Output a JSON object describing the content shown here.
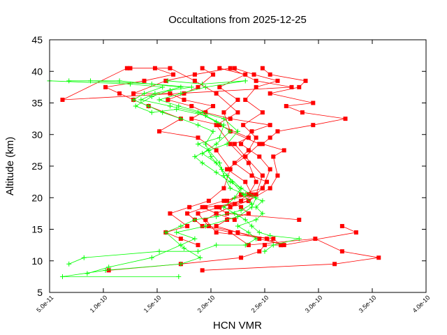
{
  "chart_data": {
    "type": "line",
    "title": "Occultations from 2025-12-25",
    "xlabel": "HCN VMR",
    "ylabel": "Altitude (km)",
    "xlim": [
      5e-11,
      4e-10
    ],
    "ylim": [
      5,
      45
    ],
    "xticks": [
      5e-11,
      1e-10,
      1.5e-10,
      2e-10,
      2.5e-10,
      3e-10,
      3.5e-10,
      4e-10
    ],
    "xtick_labels": [
      "5.0e-11",
      "1.0e-10",
      "1.5e-10",
      "2.0e-10",
      "2.5e-10",
      "3.0e-10",
      "3.5e-10",
      "4.0e-10"
    ],
    "yticks": [
      5,
      10,
      15,
      20,
      25,
      30,
      35,
      40,
      45
    ],
    "ytick_labels": [
      "5",
      "10",
      "15",
      "20",
      "25",
      "30",
      "35",
      "40",
      "45"
    ],
    "grid": false,
    "legend": "none",
    "series": [
      {
        "name": "profile-1",
        "color": "#ff0000",
        "marker": "square",
        "points": [
          [
            1.92e-10,
            8.5
          ],
          [
            3.15e-10,
            9.5
          ],
          [
            3.56e-10,
            10.5
          ],
          [
            3.22e-10,
            11.5
          ],
          [
            2.97e-10,
            13.5
          ],
          [
            2.35e-10,
            12.5
          ],
          [
            2.18e-10,
            14.5
          ],
          [
            1.92e-10,
            15.5
          ],
          [
            1.85e-10,
            16.5
          ],
          [
            1.78e-10,
            17.5
          ],
          [
            1.95e-10,
            18.5
          ],
          [
            2.22e-10,
            19.0
          ],
          [
            2.35e-10,
            20.5
          ],
          [
            2.42e-10,
            22.5
          ],
          [
            2.35e-10,
            25.5
          ],
          [
            2.18e-10,
            28.5
          ],
          [
            2.05e-10,
            31.5
          ],
          [
            2.25e-10,
            33.5
          ],
          [
            2.05e-10,
            36.5
          ],
          [
            1.85e-10,
            38.5
          ],
          [
            1.62e-10,
            40.5
          ],
          [
            1.25e-10,
            40.5
          ]
        ]
      },
      {
        "name": "profile-2",
        "color": "#ff0000",
        "marker": "square",
        "points": [
          [
            1.05e-10,
            8.5
          ],
          [
            1.72e-10,
            9.5
          ],
          [
            2.28e-10,
            10.5
          ],
          [
            2.45e-10,
            11.5
          ],
          [
            2.5e-10,
            12.5
          ],
          [
            2.65e-10,
            12.5
          ],
          [
            2.58e-10,
            13.5
          ],
          [
            2.05e-10,
            14.5
          ],
          [
            1.95e-10,
            16.5
          ],
          [
            2.05e-10,
            17.5
          ],
          [
            2.18e-10,
            18.5
          ],
          [
            2.35e-10,
            19.5
          ],
          [
            2.55e-10,
            21.5
          ],
          [
            2.62e-10,
            23.5
          ],
          [
            2.58e-10,
            26.5
          ],
          [
            2.68e-10,
            27.5
          ],
          [
            2.48e-10,
            28.5
          ],
          [
            2.55e-10,
            29.5
          ],
          [
            2.62e-10,
            30.5
          ],
          [
            2.95e-10,
            31.5
          ],
          [
            3.25e-10,
            32.5
          ],
          [
            2.85e-10,
            33.5
          ],
          [
            2.7e-10,
            34.5
          ],
          [
            2.95e-10,
            35.0
          ],
          [
            2.55e-10,
            36.5
          ],
          [
            2.82e-10,
            37.5
          ],
          [
            2.88e-10,
            38.5
          ],
          [
            2.55e-10,
            39.5
          ],
          [
            2.48e-10,
            40.5
          ]
        ]
      },
      {
        "name": "profile-3",
        "color": "#ff0000",
        "marker": "square",
        "points": [
          [
            1.88e-10,
            12.5
          ],
          [
            1.72e-10,
            13.5
          ],
          [
            1.58e-10,
            14.5
          ],
          [
            1.78e-10,
            15.5
          ],
          [
            1.62e-10,
            17.5
          ],
          [
            1.8e-10,
            18.5
          ],
          [
            1.98e-10,
            19.5
          ],
          [
            2.12e-10,
            21.5
          ],
          [
            2.18e-10,
            24.5
          ],
          [
            2.05e-10,
            27.5
          ],
          [
            1.88e-10,
            29.5
          ],
          [
            1.52e-10,
            30.5
          ],
          [
            1.72e-10,
            32.5
          ],
          [
            1.42e-10,
            34.5
          ],
          [
            1.28e-10,
            35.5
          ],
          [
            1.15e-10,
            36.5
          ],
          [
            1.02e-10,
            37.5
          ],
          [
            1.38e-10,
            38.5
          ],
          [
            1.65e-10,
            39.5
          ],
          [
            1.48e-10,
            40.5
          ]
        ]
      },
      {
        "name": "profile-4",
        "color": "#ff0000",
        "marker": "square",
        "points": [
          [
            2.65e-10,
            12.5
          ],
          [
            2.52e-10,
            13.5
          ],
          [
            2.25e-10,
            14.5
          ],
          [
            2.05e-10,
            15.5
          ],
          [
            2.15e-10,
            16.5
          ],
          [
            2.35e-10,
            17.5
          ],
          [
            2.28e-10,
            18.5
          ],
          [
            2.15e-10,
            19.5
          ],
          [
            2.28e-10,
            20.5
          ],
          [
            2.48e-10,
            21.5
          ],
          [
            2.52e-10,
            22.5
          ],
          [
            2.38e-10,
            23.5
          ],
          [
            2.22e-10,
            25.5
          ],
          [
            2.35e-10,
            27.5
          ],
          [
            2.42e-10,
            29.5
          ],
          [
            2.3e-10,
            31.5
          ],
          [
            2.48e-10,
            33.5
          ],
          [
            2.32e-10,
            35.5
          ],
          [
            2.42e-10,
            37.5
          ],
          [
            2.62e-10,
            38.5
          ],
          [
            2.4e-10,
            39.5
          ],
          [
            2.22e-10,
            40.5
          ]
        ]
      },
      {
        "name": "profile-5",
        "color": "#ff0000",
        "marker": "square",
        "points": [
          [
            2.82e-10,
            16.5
          ],
          [
            2.15e-10,
            17.5
          ],
          [
            2.05e-10,
            18.5
          ],
          [
            2.28e-10,
            19.5
          ],
          [
            2.42e-10,
            20.5
          ],
          [
            2.48e-10,
            23.5
          ],
          [
            2.32e-10,
            26.5
          ],
          [
            2.45e-10,
            28.5
          ],
          [
            2.18e-10,
            30.5
          ],
          [
            2.12e-10,
            33.5
          ],
          [
            2.25e-10,
            35.5
          ],
          [
            2.08e-10,
            37.5
          ],
          [
            2.32e-10,
            39.5
          ],
          [
            2.08e-10,
            40.5
          ]
        ]
      },
      {
        "name": "profile-6",
        "color": "#ff0000",
        "marker": "square",
        "points": [
          [
            3.22e-10,
            15.5
          ],
          [
            3.35e-10,
            14.5
          ],
          [
            2.68e-10,
            12.5
          ],
          [
            2.45e-10,
            13.5
          ],
          [
            2.25e-10,
            14.5
          ],
          [
            1.98e-10,
            15.5
          ],
          [
            1.88e-10,
            17.5
          ],
          [
            2.08e-10,
            18.5
          ],
          [
            2.35e-10,
            19.5
          ],
          [
            2.48e-10,
            21.5
          ],
          [
            2.55e-10,
            24.5
          ],
          [
            2.45e-10,
            26.5
          ],
          [
            2.28e-10,
            28.5
          ],
          [
            2.38e-10,
            30.5
          ],
          [
            2.55e-10,
            31.5
          ],
          [
            2.18e-10,
            32.5
          ],
          [
            1.95e-10,
            33.5
          ],
          [
            1.82e-10,
            34.5
          ],
          [
            1.6e-10,
            35.5
          ],
          [
            1.75e-10,
            36.5
          ],
          [
            1.88e-10,
            37.5
          ],
          [
            2.02e-10,
            39.5
          ],
          [
            1.92e-10,
            40.5
          ]
        ]
      },
      {
        "name": "profile-7",
        "color": "#ff0000",
        "marker": "square",
        "points": [
          [
            2.22e-10,
            16.5
          ],
          [
            2.05e-10,
            17.5
          ],
          [
            1.92e-10,
            18.5
          ],
          [
            2.12e-10,
            19.5
          ],
          [
            2.38e-10,
            20.5
          ],
          [
            2.32e-10,
            22.5
          ],
          [
            2.15e-10,
            24.5
          ],
          [
            2.32e-10,
            26.5
          ],
          [
            2.22e-10,
            28.5
          ],
          [
            2.35e-10,
            29.5
          ],
          [
            2.08e-10,
            31.5
          ],
          [
            1.82e-10,
            32.5
          ],
          [
            2.02e-10,
            34.5
          ],
          [
            1.75e-10,
            35.5
          ],
          [
            1.62e-10,
            36.5
          ],
          [
            1.28e-10,
            36.5
          ],
          [
            1.58e-10,
            38.5
          ],
          [
            1.85e-10,
            39.5
          ],
          [
            2.18e-10,
            40.5
          ],
          [
            2.42e-10,
            38.5
          ],
          [
            2.75e-10,
            37.5
          ],
          [
            6.2e-11,
            35.5
          ],
          [
            1.22e-10,
            40.5
          ]
        ]
      },
      {
        "name": "profile-8",
        "color": "#00ff00",
        "marker": "plus",
        "points": [
          [
            1.7e-10,
            7.5
          ],
          [
            6.2e-11,
            7.5
          ],
          [
            1.02e-10,
            8.5
          ],
          [
            1.72e-10,
            9.5
          ],
          [
            1.9e-10,
            10.5
          ],
          [
            1.75e-10,
            12.0
          ],
          [
            1.58e-10,
            14.5
          ],
          [
            1.72e-10,
            15.5
          ],
          [
            1.85e-10,
            16.5
          ],
          [
            2.05e-10,
            17.0
          ],
          [
            2.28e-10,
            18.0
          ],
          [
            2.38e-10,
            19.0
          ],
          [
            2.3e-10,
            20.5
          ],
          [
            2.2e-10,
            22.5
          ],
          [
            2.1e-10,
            24.5
          ],
          [
            2e-10,
            26.5
          ],
          [
            1.95e-10,
            28.5
          ],
          [
            2.02e-10,
            30.5
          ],
          [
            1.88e-10,
            31.5
          ],
          [
            1.72e-10,
            32.5
          ],
          [
            1.55e-10,
            33.5
          ],
          [
            1.42e-10,
            34.5
          ],
          [
            1.28e-10,
            35.5
          ],
          [
            1.38e-10,
            36.5
          ],
          [
            1.55e-10,
            37.5
          ],
          [
            1.25e-10,
            38.0
          ],
          [
            5e-11,
            38.5
          ]
        ]
      },
      {
        "name": "profile-9",
        "color": "#00ff00",
        "marker": "plus",
        "points": [
          [
            8.5e-11,
            8.0
          ],
          [
            1.05e-10,
            9.0
          ],
          [
            1.45e-10,
            10.5
          ],
          [
            1.72e-10,
            12.5
          ],
          [
            1.85e-10,
            13.5
          ],
          [
            1.68e-10,
            14.5
          ],
          [
            1.95e-10,
            15.5
          ],
          [
            2.25e-10,
            17.0
          ],
          [
            2.38e-10,
            18.5
          ],
          [
            2.42e-10,
            20.0
          ],
          [
            2.28e-10,
            21.5
          ],
          [
            2.15e-10,
            23.5
          ],
          [
            2.05e-10,
            25.5
          ],
          [
            1.92e-10,
            27.0
          ],
          [
            2.05e-10,
            28.5
          ],
          [
            2.18e-10,
            30.5
          ],
          [
            2.05e-10,
            32.0
          ],
          [
            1.88e-10,
            33.5
          ],
          [
            1.62e-10,
            34.5
          ],
          [
            1.35e-10,
            35.5
          ],
          [
            1.48e-10,
            36.5
          ],
          [
            1.72e-10,
            37.5
          ],
          [
            1.15e-10,
            38.5
          ],
          [
            6.8e-11,
            38.5
          ]
        ]
      },
      {
        "name": "profile-10",
        "color": "#00ff00",
        "marker": "plus",
        "points": [
          [
            6.8e-11,
            9.5
          ],
          [
            8.2e-11,
            10.5
          ],
          [
            1.52e-10,
            11.5
          ],
          [
            1.88e-10,
            11.5
          ],
          [
            2.05e-10,
            12.5
          ],
          [
            2.32e-10,
            12.5
          ],
          [
            2.42e-10,
            13.5
          ],
          [
            2.35e-10,
            14.5
          ],
          [
            2.25e-10,
            15.5
          ],
          [
            2.42e-10,
            16.5
          ],
          [
            2.48e-10,
            17.5
          ],
          [
            2.42e-10,
            18.5
          ],
          [
            2.48e-10,
            19.5
          ],
          [
            2.32e-10,
            20.5
          ],
          [
            2.18e-10,
            21.5
          ],
          [
            2.12e-10,
            23.5
          ],
          [
            2.08e-10,
            25.5
          ],
          [
            1.98e-10,
            27.5
          ],
          [
            1.88e-10,
            28.5
          ],
          [
            2.08e-10,
            29.5
          ],
          [
            2.12e-10,
            31.5
          ],
          [
            1.95e-10,
            33.0
          ],
          [
            1.68e-10,
            34.0
          ],
          [
            1.45e-10,
            33.5
          ],
          [
            1.3e-10,
            34.5
          ],
          [
            1.45e-10,
            36.0
          ],
          [
            1.62e-10,
            37.0
          ],
          [
            1.82e-10,
            37.5
          ],
          [
            1.45e-10,
            38.0
          ],
          [
            8.8e-11,
            38.5
          ]
        ]
      },
      {
        "name": "profile-11",
        "color": "#00ff00",
        "marker": "plus",
        "points": [
          [
            2.5e-10,
            11.5
          ],
          [
            2.58e-10,
            12.5
          ],
          [
            2.82e-10,
            13.5
          ],
          [
            2.55e-10,
            14.0
          ],
          [
            2.45e-10,
            14.5
          ],
          [
            2.38e-10,
            15.5
          ],
          [
            2.32e-10,
            16.5
          ],
          [
            2.22e-10,
            17.5
          ],
          [
            2.12e-10,
            18.5
          ],
          [
            2.22e-10,
            20.0
          ],
          [
            2.28e-10,
            21.5
          ],
          [
            2.18e-10,
            22.5
          ],
          [
            2.05e-10,
            24.0
          ],
          [
            1.92e-10,
            25.5
          ],
          [
            1.85e-10,
            26.5
          ],
          [
            1.98e-10,
            27.5
          ],
          [
            2.15e-10,
            28.5
          ],
          [
            2.25e-10,
            30.5
          ],
          [
            2.12e-10,
            32.5
          ],
          [
            1.92e-10,
            33.5
          ],
          [
            1.7e-10,
            34.5
          ],
          [
            1.52e-10,
            35.5
          ],
          [
            1.72e-10,
            36.5
          ],
          [
            1.95e-10,
            37.5
          ],
          [
            2.32e-10,
            38.5
          ],
          [
            1.92e-10,
            38.0
          ],
          [
            1.6e-10,
            38.5
          ]
        ]
      }
    ]
  }
}
